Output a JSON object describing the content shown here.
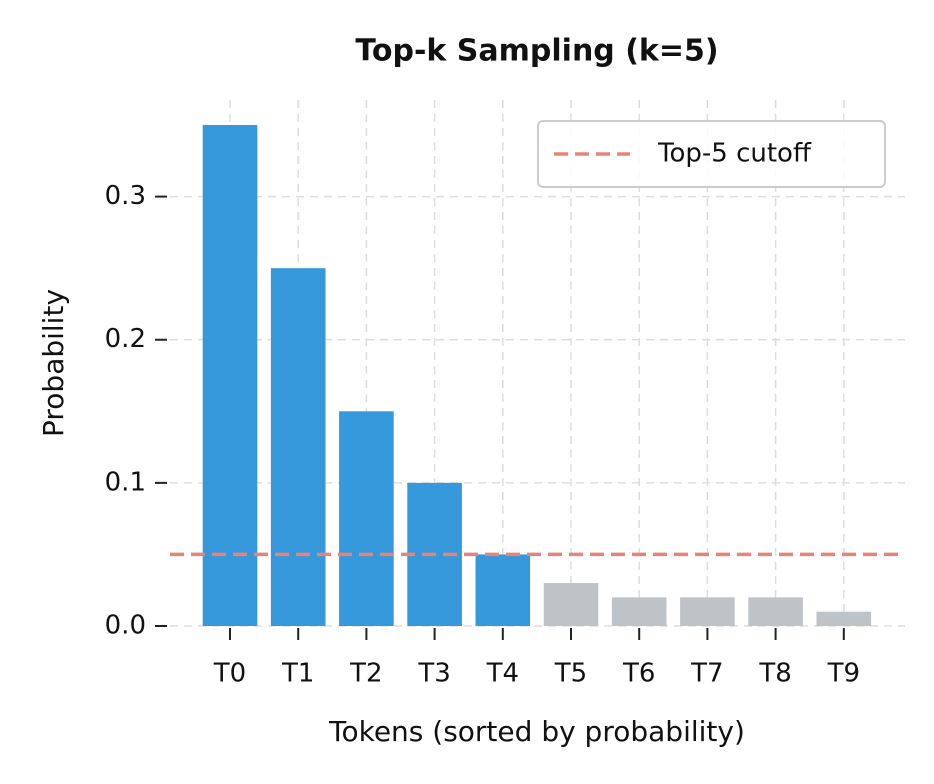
{
  "chart_data": {
    "type": "bar",
    "title": "Top-k Sampling (k=5)",
    "xlabel": "Tokens (sorted by probability)",
    "ylabel": "Probability",
    "categories": [
      "T0",
      "T1",
      "T2",
      "T3",
      "T4",
      "T5",
      "T6",
      "T7",
      "T8",
      "T9"
    ],
    "values": [
      0.35,
      0.25,
      0.15,
      0.1,
      0.05,
      0.03,
      0.02,
      0.02,
      0.02,
      0.01
    ],
    "colors": [
      "#3498db",
      "#3498db",
      "#3498db",
      "#3498db",
      "#3498db",
      "#bdc3c7",
      "#bdc3c7",
      "#bdc3c7",
      "#bdc3c7",
      "#bdc3c7"
    ],
    "ylim": [
      0,
      0.3675
    ],
    "yticks": [
      {
        "value": 0,
        "label": "0.0"
      },
      {
        "value": 0.1,
        "label": "0.1"
      },
      {
        "value": 0.2,
        "label": "0.2"
      },
      {
        "value": 0.3,
        "label": "0.3"
      }
    ],
    "grid": true,
    "reference_line": {
      "value": 0.05,
      "label": "Top-5 cutoff",
      "color": "#e8837a"
    },
    "legend": "upper right"
  }
}
